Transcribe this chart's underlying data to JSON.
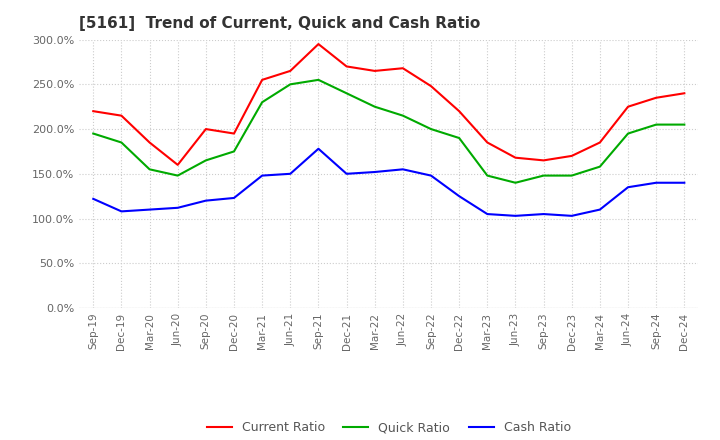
{
  "title": "[5161]  Trend of Current, Quick and Cash Ratio",
  "ylim": [
    0,
    300
  ],
  "yticks": [
    0,
    50,
    100,
    150,
    200,
    250,
    300
  ],
  "background_color": "#ffffff",
  "plot_bg_color": "#ffffff",
  "grid_color": "#cccccc",
  "x_labels": [
    "Sep-19",
    "Dec-19",
    "Mar-20",
    "Jun-20",
    "Sep-20",
    "Dec-20",
    "Mar-21",
    "Jun-21",
    "Sep-21",
    "Dec-21",
    "Mar-22",
    "Jun-22",
    "Sep-22",
    "Dec-22",
    "Mar-23",
    "Jun-23",
    "Sep-23",
    "Dec-23",
    "Mar-24",
    "Jun-24",
    "Sep-24",
    "Dec-24"
  ],
  "current_ratio": [
    220,
    215,
    185,
    160,
    200,
    195,
    255,
    265,
    295,
    270,
    265,
    268,
    248,
    220,
    185,
    168,
    165,
    170,
    185,
    225,
    235,
    240
  ],
  "quick_ratio": [
    195,
    185,
    155,
    148,
    165,
    175,
    230,
    250,
    255,
    240,
    225,
    215,
    200,
    190,
    148,
    140,
    148,
    148,
    158,
    195,
    205,
    205
  ],
  "cash_ratio": [
    122,
    108,
    110,
    112,
    120,
    123,
    148,
    150,
    178,
    150,
    152,
    155,
    148,
    125,
    105,
    103,
    105,
    103,
    110,
    135,
    140,
    140
  ],
  "current_color": "#ff0000",
  "quick_color": "#00aa00",
  "cash_color": "#0000ff",
  "legend_labels": [
    "Current Ratio",
    "Quick Ratio",
    "Cash Ratio"
  ]
}
